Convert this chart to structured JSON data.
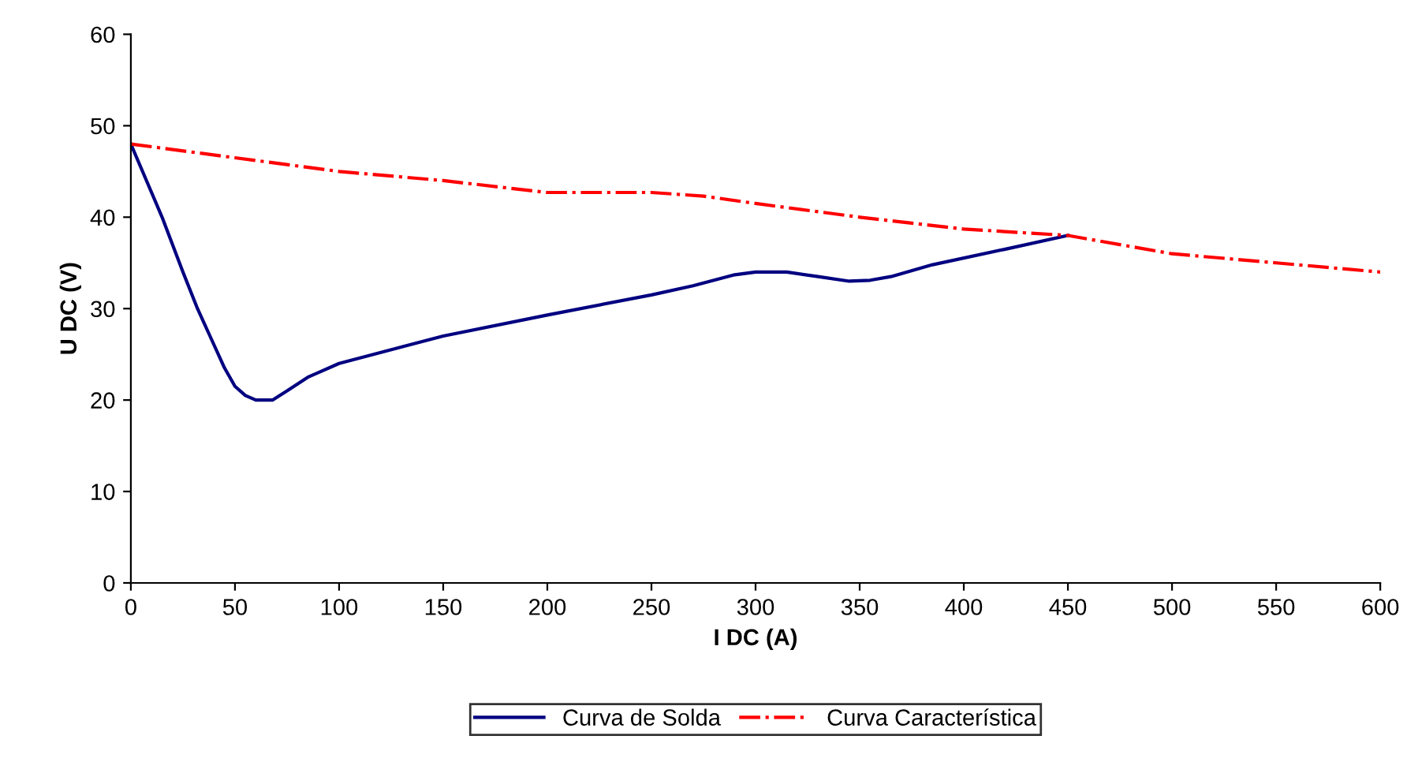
{
  "chart_data": {
    "type": "line",
    "xlabel": "I DC (A)",
    "ylabel": "U DC (V)",
    "xlim": [
      0,
      600
    ],
    "xticks": [
      0,
      50,
      100,
      150,
      200,
      250,
      300,
      350,
      400,
      450,
      500,
      550,
      600
    ],
    "ylim": [
      0,
      60
    ],
    "yticks": [
      0,
      10,
      20,
      30,
      40,
      50,
      60
    ],
    "grid": false,
    "legend": "bottom",
    "marker": "none",
    "series": [
      {
        "name": "Curva de Solda",
        "color": "#000080",
        "line_style": "solid",
        "x": [
          0,
          15,
          25,
          32,
          38,
          45,
          50,
          55,
          60,
          68,
          75,
          85,
          90,
          100,
          150,
          200,
          250,
          270,
          290,
          300,
          315,
          330,
          345,
          355,
          365,
          385,
          420,
          450
        ],
        "values": [
          48,
          40,
          34,
          30,
          27,
          23.5,
          21.5,
          20.5,
          20,
          20,
          21,
          22.5,
          23,
          24,
          27,
          29.3,
          31.5,
          32.5,
          33.7,
          34,
          34,
          33.5,
          33,
          33.1,
          33.5,
          34.8,
          36.5,
          38
        ]
      },
      {
        "name": "Curva Característica",
        "color": "#ff0000",
        "line_style": "dashdot",
        "x": [
          0,
          50,
          100,
          150,
          200,
          250,
          275,
          300,
          350,
          400,
          450,
          500,
          550,
          600
        ],
        "values": [
          48,
          46.5,
          45,
          44,
          42.7,
          42.7,
          42.3,
          41.5,
          40,
          38.7,
          38,
          36,
          35,
          34
        ]
      }
    ]
  }
}
